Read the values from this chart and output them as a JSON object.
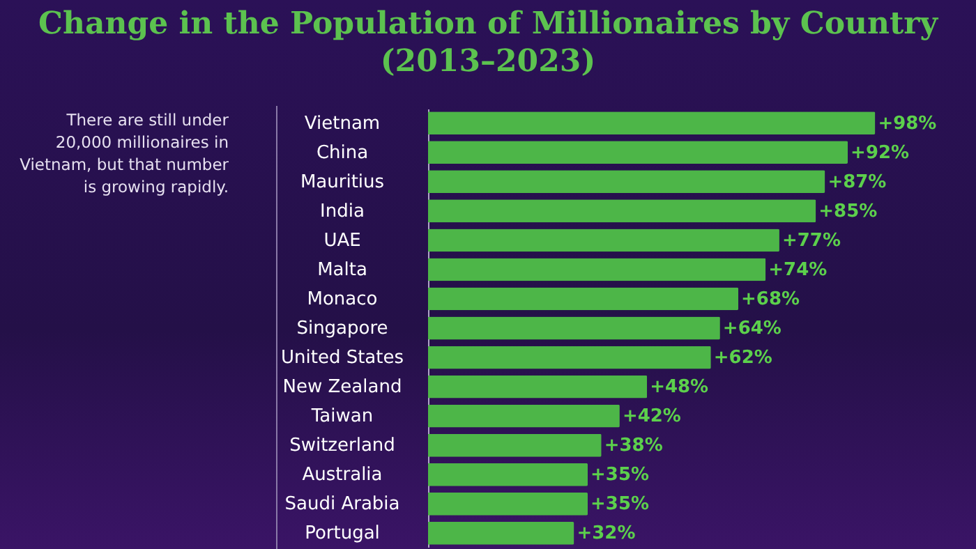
{
  "chart_data": {
    "type": "bar",
    "orientation": "horizontal",
    "title": "Change in the Population of Millionaires by Country (2013–2023)",
    "categories": [
      "Vietnam",
      "China",
      "Mauritius",
      "India",
      "UAE",
      "Malta",
      "Monaco",
      "Singapore",
      "United States",
      "New Zealand",
      "Taiwan",
      "Switzerland",
      "Australia",
      "Saudi Arabia",
      "Portugal"
    ],
    "values": [
      98,
      92,
      87,
      85,
      77,
      74,
      68,
      64,
      62,
      48,
      42,
      38,
      35,
      35,
      32
    ],
    "value_labels": [
      "+98%",
      "+92%",
      "+87%",
      "+85%",
      "+77%",
      "+74%",
      "+68%",
      "+64%",
      "+62%",
      "+48%",
      "+42%",
      "+38%",
      "+35%",
      "+35%",
      "+32%"
    ],
    "color": "#4db648",
    "annotations": [
      "There are still under 20,000 millionaires in Vietnam, but that number is growing rapidly."
    ]
  }
}
